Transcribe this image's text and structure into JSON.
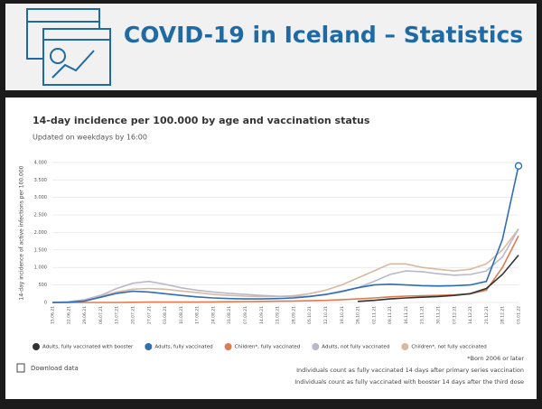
{
  "header": {
    "title": "COVID-19 in Iceland – Statistics"
  },
  "chart_data": {
    "type": "line",
    "title": "14-day incidence per 100.000 by age and vaccination status",
    "subtitle": "Updated on weekdays by 16:00",
    "y_label": "14-day incidence of active infections per 100.000",
    "categories": [
      "15.06.21",
      "22.06.21",
      "29.06.21",
      "06.07.21",
      "13.07.21",
      "20.07.21",
      "27.07.21",
      "03.08.21",
      "10.08.21",
      "17.08.21",
      "24.08.21",
      "31.08.21",
      "07.09.21",
      "14.09.21",
      "21.09.21",
      "28.09.21",
      "05.10.21",
      "12.10.21",
      "19.10.21",
      "26.10.21",
      "02.11.21",
      "09.11.21",
      "16.11.21",
      "23.11.21",
      "30.11.21",
      "07.12.21",
      "14.12.21",
      "21.12.21",
      "28.12.21",
      "03.01.22"
    ],
    "series": [
      {
        "name": "Adults, fully vaccinated with booster",
        "color": "#333333",
        "values": [
          null,
          null,
          null,
          null,
          null,
          null,
          null,
          null,
          null,
          null,
          null,
          null,
          null,
          null,
          null,
          null,
          null,
          null,
          null,
          30,
          60,
          100,
          130,
          150,
          170,
          200,
          250,
          400,
          800,
          1350
        ]
      },
      {
        "name": "Adults, fully vaccinated",
        "color": "#2f6db5",
        "values": [
          0,
          5,
          40,
          150,
          260,
          320,
          300,
          250,
          200,
          160,
          130,
          110,
          100,
          100,
          110,
          130,
          170,
          230,
          320,
          420,
          500,
          520,
          500,
          480,
          470,
          480,
          500,
          600,
          1800,
          3900
        ]
      },
      {
        "name": "Children*, fully vaccinated",
        "color": "#e07b4f",
        "values": [
          0,
          0,
          0,
          0,
          0,
          5,
          10,
          10,
          10,
          10,
          15,
          20,
          25,
          30,
          35,
          40,
          50,
          60,
          80,
          100,
          130,
          160,
          180,
          190,
          200,
          220,
          250,
          350,
          1000,
          1900
        ]
      },
      {
        "name": "Adults, not fully vaccinated",
        "color": "#b9b9cc",
        "values": [
          0,
          20,
          80,
          200,
          400,
          550,
          600,
          520,
          420,
          350,
          300,
          260,
          230,
          200,
          180,
          170,
          180,
          220,
          300,
          420,
          600,
          800,
          900,
          880,
          820,
          780,
          800,
          900,
          1300,
          2100
        ]
      },
      {
        "name": "Children*, not fully vaccinated",
        "color": "#d9b9a0",
        "values": [
          0,
          10,
          60,
          180,
          300,
          380,
          400,
          380,
          330,
          280,
          230,
          200,
          180,
          170,
          170,
          190,
          250,
          350,
          500,
          700,
          900,
          1100,
          1100,
          1000,
          950,
          900,
          950,
          1100,
          1500,
          2100
        ]
      }
    ],
    "ylim": [
      0,
      4100
    ],
    "yticks": [
      0,
      500,
      {
        "value": 1000,
        "label": "1.000"
      },
      {
        "value": 1500,
        "label": "1.500"
      },
      {
        "value": 2000,
        "label": "2.000"
      },
      {
        "value": 2500,
        "label": "2.500"
      },
      {
        "value": 3000,
        "label": "3.000"
      },
      {
        "value": 3500,
        "label": "3.500"
      },
      {
        "value": 4000,
        "label": "4.000"
      }
    ],
    "grid": true,
    "download": "Download data",
    "notes": [
      "*Born 2006 or later",
      "Individuals count as fully vaccinated 14 days after primary series vaccination",
      "Individuals count as fully vaccinated with booster 14 days after the third dose"
    ]
  }
}
